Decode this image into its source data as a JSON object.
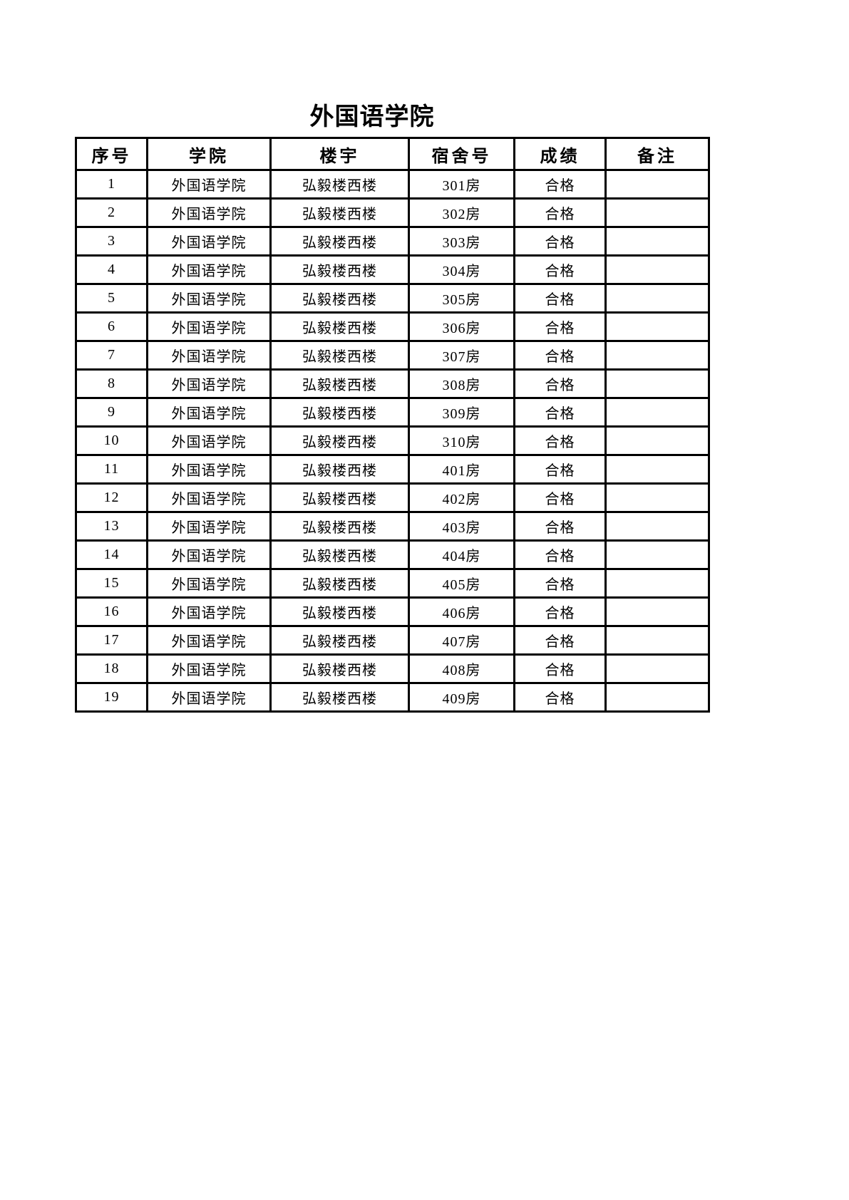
{
  "page": {
    "title": "外国语学院",
    "background_color": "#ffffff",
    "text_color": "#000000",
    "border_color": "#000000"
  },
  "table": {
    "columns": [
      {
        "key": "no",
        "label": "序号"
      },
      {
        "key": "college",
        "label": "学院"
      },
      {
        "key": "building",
        "label": "楼宇"
      },
      {
        "key": "room",
        "label": "宿舍号"
      },
      {
        "key": "grade",
        "label": "成绩"
      },
      {
        "key": "remark",
        "label": "备注"
      }
    ],
    "rows": [
      {
        "no": "1",
        "college": "外国语学院",
        "building": "弘毅楼西楼",
        "room": "301房",
        "grade": "合格",
        "remark": ""
      },
      {
        "no": "2",
        "college": "外国语学院",
        "building": "弘毅楼西楼",
        "room": "302房",
        "grade": "合格",
        "remark": ""
      },
      {
        "no": "3",
        "college": "外国语学院",
        "building": "弘毅楼西楼",
        "room": "303房",
        "grade": "合格",
        "remark": ""
      },
      {
        "no": "4",
        "college": "外国语学院",
        "building": "弘毅楼西楼",
        "room": "304房",
        "grade": "合格",
        "remark": ""
      },
      {
        "no": "5",
        "college": "外国语学院",
        "building": "弘毅楼西楼",
        "room": "305房",
        "grade": "合格",
        "remark": ""
      },
      {
        "no": "6",
        "college": "外国语学院",
        "building": "弘毅楼西楼",
        "room": "306房",
        "grade": "合格",
        "remark": ""
      },
      {
        "no": "7",
        "college": "外国语学院",
        "building": "弘毅楼西楼",
        "room": "307房",
        "grade": "合格",
        "remark": ""
      },
      {
        "no": "8",
        "college": "外国语学院",
        "building": "弘毅楼西楼",
        "room": "308房",
        "grade": "合格",
        "remark": ""
      },
      {
        "no": "9",
        "college": "外国语学院",
        "building": "弘毅楼西楼",
        "room": "309房",
        "grade": "合格",
        "remark": ""
      },
      {
        "no": "10",
        "college": "外国语学院",
        "building": "弘毅楼西楼",
        "room": "310房",
        "grade": "合格",
        "remark": ""
      },
      {
        "no": "11",
        "college": "外国语学院",
        "building": "弘毅楼西楼",
        "room": "401房",
        "grade": "合格",
        "remark": ""
      },
      {
        "no": "12",
        "college": "外国语学院",
        "building": "弘毅楼西楼",
        "room": "402房",
        "grade": "合格",
        "remark": ""
      },
      {
        "no": "13",
        "college": "外国语学院",
        "building": "弘毅楼西楼",
        "room": "403房",
        "grade": "合格",
        "remark": ""
      },
      {
        "no": "14",
        "college": "外国语学院",
        "building": "弘毅楼西楼",
        "room": "404房",
        "grade": "合格",
        "remark": ""
      },
      {
        "no": "15",
        "college": "外国语学院",
        "building": "弘毅楼西楼",
        "room": "405房",
        "grade": "合格",
        "remark": ""
      },
      {
        "no": "16",
        "college": "外国语学院",
        "building": "弘毅楼西楼",
        "room": "406房",
        "grade": "合格",
        "remark": ""
      },
      {
        "no": "17",
        "college": "外国语学院",
        "building": "弘毅楼西楼",
        "room": "407房",
        "grade": "合格",
        "remark": ""
      },
      {
        "no": "18",
        "college": "外国语学院",
        "building": "弘毅楼西楼",
        "room": "408房",
        "grade": "合格",
        "remark": ""
      },
      {
        "no": "19",
        "college": "外国语学院",
        "building": "弘毅楼西楼",
        "room": "409房",
        "grade": "合格",
        "remark": ""
      }
    ]
  }
}
